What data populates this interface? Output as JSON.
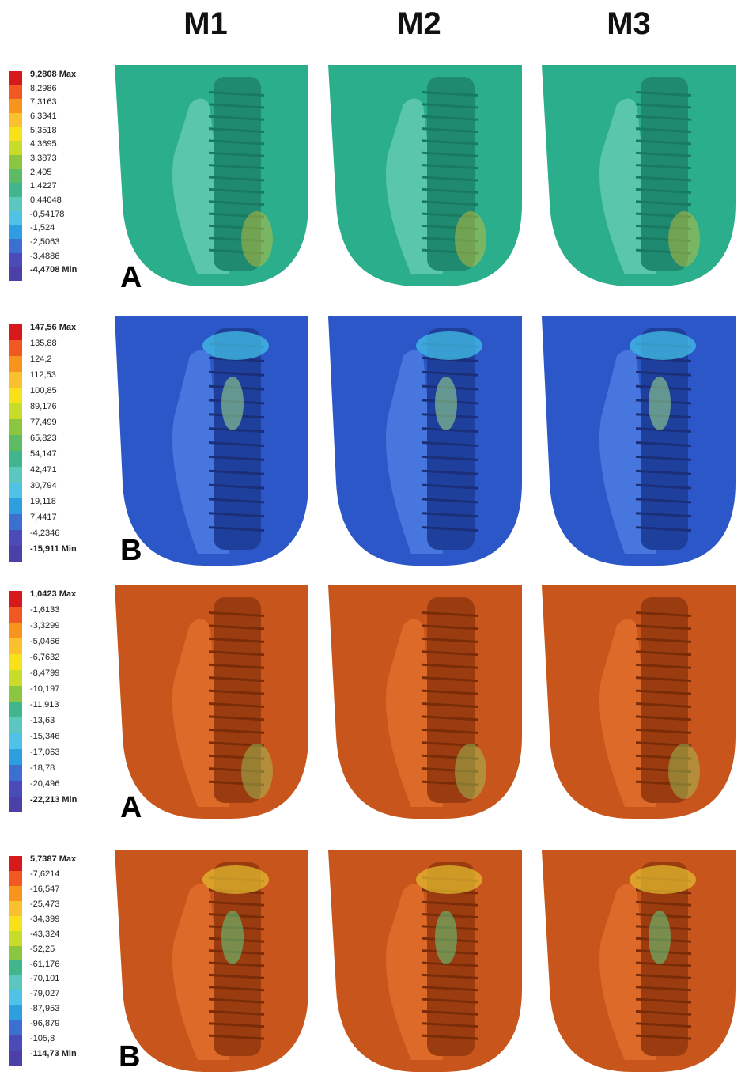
{
  "columns": [
    "M1",
    "M2",
    "M3"
  ],
  "rows": [
    {
      "letter": "A",
      "theme": "teal",
      "legend": [
        "9,2808 Max",
        "8,2986",
        "7,3163",
        "6,3341",
        "5,3518",
        "4,3695",
        "3,3873",
        "2,405",
        "1,4227",
        "0,44048",
        "-0,54178",
        "-1,524",
        "-2,5063",
        "-3,4886",
        "-4,4708 Min"
      ]
    },
    {
      "letter": "B",
      "theme": "blue",
      "legend": [
        "147,56 Max",
        "135,88",
        "124,2",
        "112,53",
        "100,85",
        "89,176",
        "77,499",
        "65,823",
        "54,147",
        "42,471",
        "30,794",
        "19,118",
        "7,4417",
        "-4,2346",
        "-15,911 Min"
      ]
    },
    {
      "letter": "A",
      "theme": "orange",
      "legend": [
        "1,0423 Max",
        "-1,6133",
        "-3,3299",
        "-5,0466",
        "-6,7632",
        "-8,4799",
        "-10,197",
        "-11,913",
        "-13,63",
        "-15,346",
        "-17,063",
        "-18,78",
        "-20,496",
        "-22,213 Min"
      ]
    },
    {
      "letter": "B",
      "theme": "orange2",
      "legend": [
        "5,7387 Max",
        "-7,6214",
        "-16,547",
        "-25,473",
        "-34,399",
        "-43,324",
        "-52,25",
        "-61,176",
        "-70,101",
        "-79,027",
        "-87,953",
        "-96,879",
        "-105,8",
        "-114,73 Min"
      ]
    }
  ],
  "colors": {
    "teal": "#2aae8c",
    "blue": "#2c57c8",
    "orange": "#c8561c"
  }
}
